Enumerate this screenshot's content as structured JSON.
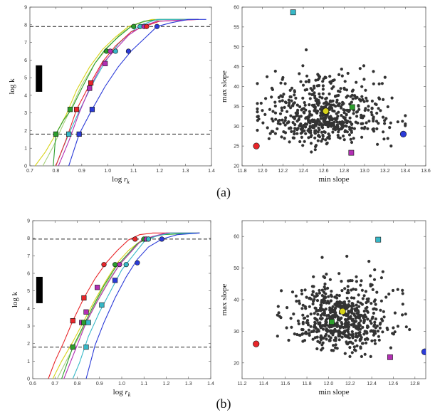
{
  "figure": {
    "caption_a": "(a)",
    "caption_b": "(b)"
  },
  "colors": {
    "red": "#e8262a",
    "magenta": "#b32fb4",
    "green": "#2c9e2c",
    "cyan": "#37b8c7",
    "blue": "#2b3bd8",
    "yellow": "#d8d41a",
    "lightgreen": "#a8d07a",
    "black": "#222222",
    "scatter": "#333333"
  },
  "chart_data": [
    {
      "id": "a_left",
      "type": "line",
      "xlabel": "log r",
      "xlabel_sub": "k",
      "ylabel": "log k",
      "xlim": [
        0.7,
        1.4
      ],
      "ylim": [
        0,
        9
      ],
      "xticks": [
        "0.7",
        "0.8",
        "0.9",
        "1.0",
        "1.1",
        "1.2",
        "1.3",
        "1.4"
      ],
      "yticks": [
        "0",
        "1",
        "2",
        "3",
        "4",
        "5",
        "6",
        "7",
        "8",
        "9"
      ],
      "hlines": [
        1.8,
        7.9
      ],
      "scale_bar": {
        "x": 0.735,
        "y_low": 4.2,
        "y_high": 5.7
      },
      "series": [
        {
          "name": "yellow",
          "color": "yellow",
          "x": [
            0.72,
            0.76,
            0.8,
            0.84,
            0.88,
            0.93,
            0.98,
            1.03,
            1.08,
            1.12,
            1.17,
            1.24,
            1.35
          ],
          "y": [
            0,
            0.8,
            1.8,
            2.9,
            4.3,
            5.6,
            6.6,
            7.3,
            7.9,
            8.1,
            8.3,
            8.3,
            8.3
          ]
        },
        {
          "name": "lightgreen",
          "color": "lightgreen",
          "x": [
            0.75,
            0.79,
            0.83,
            0.86,
            0.9,
            0.95,
            1.0,
            1.05,
            1.1,
            1.15,
            1.22,
            1.35
          ],
          "y": [
            0,
            1.1,
            2.4,
            3.3,
            4.6,
            5.8,
            6.7,
            7.5,
            8.0,
            8.2,
            8.3,
            8.3
          ]
        },
        {
          "name": "green",
          "color": "green",
          "x": [
            0.79,
            0.8,
            0.83,
            0.86,
            0.9,
            0.95,
            0.99,
            1.04,
            1.09,
            1.14,
            1.2,
            1.35
          ],
          "y": [
            0,
            1.8,
            2.6,
            3.2,
            4.4,
            5.8,
            6.6,
            7.3,
            7.9,
            8.2,
            8.3,
            8.3
          ]
        },
        {
          "name": "cyan",
          "color": "cyan",
          "x": [
            0.8,
            0.83,
            0.85,
            0.89,
            0.94,
            0.99,
            1.04,
            1.09,
            1.13,
            1.19,
            1.35
          ],
          "y": [
            0,
            1.1,
            1.8,
            3.1,
            4.6,
            5.9,
            6.9,
            7.6,
            8.0,
            8.3,
            8.3
          ]
        },
        {
          "name": "red",
          "color": "red",
          "x": [
            0.8,
            0.84,
            0.88,
            0.93,
            0.98,
            1.03,
            1.09,
            1.14,
            1.2,
            1.35
          ],
          "y": [
            0,
            1.5,
            3.2,
            4.6,
            5.9,
            6.8,
            7.6,
            7.9,
            8.2,
            8.3
          ]
        },
        {
          "name": "magenta",
          "color": "magenta",
          "x": [
            0.81,
            0.85,
            0.89,
            0.93,
            0.98,
            1.03,
            1.08,
            1.13,
            1.19,
            1.35
          ],
          "y": [
            0,
            1.4,
            3.0,
            4.4,
            5.8,
            6.6,
            7.4,
            7.9,
            8.2,
            8.3
          ]
        },
        {
          "name": "blue",
          "color": "blue",
          "x": [
            0.85,
            0.89,
            0.94,
            0.99,
            1.04,
            1.09,
            1.14,
            1.19,
            1.24,
            1.31,
            1.38
          ],
          "y": [
            0,
            1.8,
            3.2,
            4.5,
            5.6,
            6.5,
            7.2,
            7.9,
            8.1,
            8.3,
            8.3
          ]
        }
      ],
      "markers": [
        {
          "x": 0.8,
          "y": 1.8,
          "color": "green",
          "shape": "square"
        },
        {
          "x": 0.85,
          "y": 1.8,
          "color": "cyan",
          "shape": "square"
        },
        {
          "x": 0.89,
          "y": 1.8,
          "color": "blue",
          "shape": "square"
        },
        {
          "x": 0.855,
          "y": 3.2,
          "color": "green",
          "shape": "square"
        },
        {
          "x": 0.88,
          "y": 3.2,
          "color": "red",
          "shape": "square"
        },
        {
          "x": 0.94,
          "y": 3.2,
          "color": "blue",
          "shape": "square"
        },
        {
          "x": 0.93,
          "y": 4.4,
          "color": "magenta",
          "shape": "square"
        },
        {
          "x": 0.935,
          "y": 4.7,
          "color": "red",
          "shape": "square"
        },
        {
          "x": 0.99,
          "y": 5.8,
          "color": "magenta",
          "shape": "square"
        },
        {
          "x": 0.995,
          "y": 6.5,
          "color": "green",
          "shape": "circle"
        },
        {
          "x": 1.01,
          "y": 6.5,
          "color": "magenta",
          "shape": "circle"
        },
        {
          "x": 1.03,
          "y": 6.5,
          "color": "cyan",
          "shape": "circle"
        },
        {
          "x": 1.08,
          "y": 6.5,
          "color": "blue",
          "shape": "circle"
        },
        {
          "x": 1.1,
          "y": 7.9,
          "color": "green",
          "shape": "circle"
        },
        {
          "x": 1.125,
          "y": 7.9,
          "color": "cyan",
          "shape": "circle"
        },
        {
          "x": 1.14,
          "y": 7.9,
          "color": "magenta",
          "shape": "circle"
        },
        {
          "x": 1.15,
          "y": 7.9,
          "color": "red",
          "shape": "circle"
        },
        {
          "x": 1.19,
          "y": 7.9,
          "color": "blue",
          "shape": "circle"
        }
      ]
    },
    {
      "id": "a_right",
      "type": "scatter",
      "xlabel": "min slope",
      "ylabel": "max slope",
      "xlim": [
        11.8,
        13.6
      ],
      "ylim": [
        20,
        60
      ],
      "xticks": [
        "11.8",
        "12.0",
        "12.2",
        "12.4",
        "12.6",
        "12.8",
        "13.0",
        "13.2",
        "13.4",
        "13.6"
      ],
      "yticks": [
        "20",
        "25",
        "30",
        "35",
        "40",
        "45",
        "50",
        "55",
        "60"
      ],
      "cloud": {
        "count": 600,
        "x_mean": 12.62,
        "x_sd": 0.28,
        "y_mean": 31.5,
        "y_sd": 5.5,
        "x_min": 11.95,
        "x_max": 13.4,
        "y_min": 23.5,
        "y_max": 58,
        "seed": 7
      },
      "markers": [
        {
          "x": 11.94,
          "y": 25.0,
          "color": "red",
          "shape": "circle"
        },
        {
          "x": 12.3,
          "y": 58.7,
          "color": "cyan",
          "shape": "square"
        },
        {
          "x": 12.62,
          "y": 33.8,
          "color": "yellow",
          "shape": "circle"
        },
        {
          "x": 12.88,
          "y": 34.8,
          "color": "green",
          "shape": "square"
        },
        {
          "x": 12.87,
          "y": 23.3,
          "color": "magenta",
          "shape": "square"
        },
        {
          "x": 13.38,
          "y": 28.0,
          "color": "blue",
          "shape": "circle"
        }
      ]
    },
    {
      "id": "b_left",
      "type": "line",
      "xlabel": "log r",
      "xlabel_sub": "k",
      "ylabel": "log k",
      "xlim": [
        0.6,
        1.4
      ],
      "ylim": [
        0,
        9
      ],
      "xticks": [
        "0.6",
        "0.7",
        "0.8",
        "0.9",
        "1.0",
        "1.1",
        "1.2",
        "1.3",
        "1.4"
      ],
      "yticks": [
        "0",
        "1",
        "2",
        "3",
        "4",
        "5",
        "6",
        "7",
        "8",
        "9"
      ],
      "hlines": [
        1.8,
        7.95
      ],
      "scale_bar": {
        "x": 0.63,
        "y_low": 4.3,
        "y_high": 5.8
      },
      "series": [
        {
          "name": "red",
          "color": "red",
          "x": [
            0.67,
            0.7,
            0.74,
            0.78,
            0.83,
            0.88,
            0.93,
            0.98,
            1.03,
            1.08,
            1.14,
            1.22,
            1.35
          ],
          "y": [
            0,
            1.0,
            2.1,
            3.3,
            4.6,
            5.7,
            6.6,
            7.3,
            7.9,
            8.2,
            8.3,
            8.3,
            8.3
          ]
        },
        {
          "name": "yellow",
          "color": "yellow",
          "x": [
            0.69,
            0.73,
            0.78,
            0.83,
            0.88,
            0.93,
            0.98,
            1.03,
            1.08,
            1.14,
            1.22,
            1.35
          ],
          "y": [
            0,
            1.0,
            2.1,
            3.3,
            4.5,
            5.6,
            6.6,
            7.3,
            7.8,
            8.1,
            8.3,
            8.3
          ]
        },
        {
          "name": "lightgreen",
          "color": "lightgreen",
          "x": [
            0.71,
            0.75,
            0.8,
            0.84,
            0.89,
            0.94,
            0.99,
            1.04,
            1.09,
            1.15,
            1.22,
            1.35
          ],
          "y": [
            0,
            1.0,
            2.2,
            3.2,
            4.5,
            5.6,
            6.5,
            7.2,
            7.9,
            8.1,
            8.3,
            8.3
          ]
        },
        {
          "name": "green",
          "color": "green",
          "x": [
            0.73,
            0.78,
            0.82,
            0.87,
            0.92,
            0.97,
            1.02,
            1.07,
            1.12,
            1.18,
            1.35
          ],
          "y": [
            0,
            1.8,
            2.8,
            4.1,
            5.3,
            6.3,
            7.0,
            7.7,
            8.0,
            8.2,
            8.3
          ]
        },
        {
          "name": "magenta",
          "color": "magenta",
          "x": [
            0.74,
            0.79,
            0.84,
            0.89,
            0.94,
            0.99,
            1.04,
            1.09,
            1.14,
            1.2,
            1.35
          ],
          "y": [
            0,
            1.6,
            3.2,
            4.4,
            5.5,
            6.5,
            7.2,
            7.9,
            8.1,
            8.3,
            8.3
          ]
        },
        {
          "name": "cyan",
          "color": "cyan",
          "x": [
            0.78,
            0.81,
            0.85,
            0.9,
            0.95,
            1.0,
            1.05,
            1.1,
            1.15,
            1.22,
            1.35
          ],
          "y": [
            0,
            0.9,
            2.4,
            3.8,
            5.0,
            6.2,
            7.0,
            7.8,
            8.1,
            8.3,
            8.3
          ]
        },
        {
          "name": "blue",
          "color": "blue",
          "x": [
            0.84,
            0.88,
            0.92,
            0.97,
            1.02,
            1.07,
            1.12,
            1.18,
            1.25,
            1.35
          ],
          "y": [
            0,
            1.9,
            3.2,
            4.6,
            5.8,
            6.8,
            7.5,
            7.95,
            8.2,
            8.3
          ]
        }
      ],
      "markers": [
        {
          "x": 0.78,
          "y": 1.8,
          "color": "green",
          "shape": "square"
        },
        {
          "x": 0.84,
          "y": 1.8,
          "color": "cyan",
          "shape": "square"
        },
        {
          "x": 0.78,
          "y": 3.3,
          "color": "red",
          "shape": "square"
        },
        {
          "x": 0.82,
          "y": 3.2,
          "color": "magenta",
          "shape": "square"
        },
        {
          "x": 0.83,
          "y": 3.2,
          "color": "green",
          "shape": "square"
        },
        {
          "x": 0.85,
          "y": 3.2,
          "color": "cyan",
          "shape": "square"
        },
        {
          "x": 0.83,
          "y": 4.6,
          "color": "red",
          "shape": "square"
        },
        {
          "x": 0.84,
          "y": 3.8,
          "color": "magenta",
          "shape": "square"
        },
        {
          "x": 0.89,
          "y": 5.2,
          "color": "magenta",
          "shape": "square"
        },
        {
          "x": 0.91,
          "y": 4.2,
          "color": "cyan",
          "shape": "square"
        },
        {
          "x": 0.97,
          "y": 5.6,
          "color": "blue",
          "shape": "square"
        },
        {
          "x": 0.92,
          "y": 6.5,
          "color": "red",
          "shape": "circle"
        },
        {
          "x": 0.97,
          "y": 6.5,
          "color": "green",
          "shape": "circle"
        },
        {
          "x": 0.99,
          "y": 6.5,
          "color": "magenta",
          "shape": "circle"
        },
        {
          "x": 1.02,
          "y": 6.5,
          "color": "cyan",
          "shape": "circle"
        },
        {
          "x": 1.07,
          "y": 6.6,
          "color": "blue",
          "shape": "circle"
        },
        {
          "x": 1.06,
          "y": 7.95,
          "color": "red",
          "shape": "circle"
        },
        {
          "x": 1.1,
          "y": 7.95,
          "color": "green",
          "shape": "circle"
        },
        {
          "x": 1.11,
          "y": 7.95,
          "color": "magenta",
          "shape": "circle"
        },
        {
          "x": 1.12,
          "y": 7.95,
          "color": "cyan",
          "shape": "circle"
        },
        {
          "x": 1.18,
          "y": 7.95,
          "color": "blue",
          "shape": "circle"
        }
      ]
    },
    {
      "id": "b_right",
      "type": "scatter",
      "xlabel": "min slope",
      "ylabel": "max slope",
      "xlim": [
        11.2,
        12.9
      ],
      "ylim": [
        15,
        65
      ],
      "xticks": [
        "11.2",
        "11.4",
        "11.6",
        "11.8",
        "12.0",
        "12.2",
        "12.4",
        "12.6",
        "12.8"
      ],
      "yticks": [
        "20",
        "30",
        "40",
        "50",
        "60"
      ],
      "cloud": {
        "count": 620,
        "x_mean": 12.12,
        "x_sd": 0.22,
        "y_mean": 32,
        "y_sd": 6.5,
        "x_min": 11.45,
        "x_max": 12.75,
        "y_min": 22,
        "y_max": 57,
        "seed": 13
      },
      "markers": [
        {
          "x": 11.33,
          "y": 26.0,
          "color": "red",
          "shape": "circle"
        },
        {
          "x": 12.46,
          "y": 59.0,
          "color": "cyan",
          "shape": "square"
        },
        {
          "x": 12.13,
          "y": 36.3,
          "color": "yellow",
          "shape": "circle"
        },
        {
          "x": 12.03,
          "y": 33.0,
          "color": "green",
          "shape": "square"
        },
        {
          "x": 12.57,
          "y": 21.8,
          "color": "magenta",
          "shape": "square"
        },
        {
          "x": 12.89,
          "y": 23.5,
          "color": "blue",
          "shape": "circle"
        }
      ]
    }
  ]
}
